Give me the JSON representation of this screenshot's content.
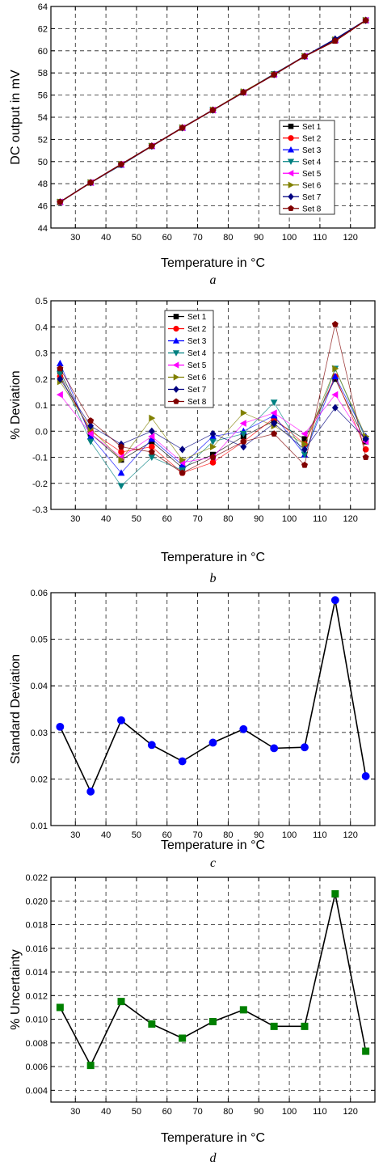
{
  "chart_data": [
    {
      "type": "line",
      "panel_label": "a",
      "xlabel": "Temperature in °C",
      "ylabel": "DC output in mV",
      "xlim": [
        22,
        128
      ],
      "ylim": [
        44,
        64
      ],
      "xticks": [
        30,
        40,
        50,
        60,
        70,
        80,
        90,
        100,
        110,
        120
      ],
      "yticks": [
        44,
        46,
        48,
        50,
        52,
        54,
        56,
        58,
        60,
        62,
        64
      ],
      "grid": true,
      "legend_position": "lower-right",
      "x": [
        25,
        35,
        45,
        55,
        65,
        75,
        85,
        95,
        105,
        115,
        125
      ],
      "series": [
        {
          "name": "Set 1",
          "color": "#000000",
          "marker": "square",
          "values": [
            46.35,
            48.1,
            49.75,
            51.4,
            53.05,
            54.65,
            56.25,
            57.85,
            59.5,
            60.9,
            62.75
          ]
        },
        {
          "name": "Set 2",
          "color": "#ff0000",
          "marker": "circle",
          "values": [
            46.35,
            48.1,
            49.75,
            51.4,
            53.05,
            54.65,
            56.25,
            57.85,
            59.5,
            60.9,
            62.75
          ]
        },
        {
          "name": "Set 3",
          "color": "#0000ff",
          "marker": "triangle-up",
          "values": [
            46.35,
            48.1,
            49.7,
            51.4,
            53.05,
            54.65,
            56.25,
            57.9,
            59.5,
            61.0,
            62.75
          ]
        },
        {
          "name": "Set 4",
          "color": "#008080",
          "marker": "triangle-down",
          "values": [
            46.35,
            48.1,
            49.7,
            51.4,
            53.05,
            54.65,
            56.25,
            57.9,
            59.5,
            60.95,
            62.75
          ]
        },
        {
          "name": "Set 5",
          "color": "#ff00ff",
          "marker": "triangle-left",
          "values": [
            46.35,
            48.1,
            49.75,
            51.4,
            53.05,
            54.65,
            56.25,
            57.85,
            59.5,
            60.95,
            62.75
          ]
        },
        {
          "name": "Set 6",
          "color": "#808000",
          "marker": "triangle-right",
          "values": [
            46.35,
            48.1,
            49.75,
            51.4,
            53.05,
            54.65,
            56.3,
            57.85,
            59.5,
            61.0,
            62.75
          ]
        },
        {
          "name": "Set 7",
          "color": "#000080",
          "marker": "diamond",
          "values": [
            46.35,
            48.1,
            49.75,
            51.4,
            53.05,
            54.65,
            56.25,
            57.85,
            59.5,
            61.05,
            62.75
          ]
        },
        {
          "name": "Set 8",
          "color": "#800000",
          "marker": "pentagon",
          "values": [
            46.35,
            48.1,
            49.75,
            51.4,
            53.05,
            54.65,
            56.25,
            57.85,
            59.5,
            60.9,
            62.75
          ]
        }
      ]
    },
    {
      "type": "line",
      "panel_label": "b",
      "xlabel": "Temperature in °C",
      "ylabel": "% Deviation",
      "xlim": [
        22,
        128
      ],
      "ylim": [
        -0.3,
        0.5
      ],
      "xticks": [
        30,
        40,
        50,
        60,
        70,
        80,
        90,
        100,
        110,
        120
      ],
      "yticks": [
        -0.3,
        -0.2,
        -0.1,
        0.0,
        0.1,
        0.2,
        0.3,
        0.4,
        0.5
      ],
      "ytick_labels": [
        "-0.3",
        "-0.2",
        "-0.1",
        "0.0",
        "0.1",
        "0.2",
        "0.3",
        "0.4",
        "0.5"
      ],
      "grid": true,
      "legend_position": "top-center",
      "x": [
        25,
        35,
        45,
        55,
        65,
        75,
        85,
        95,
        105,
        115,
        125
      ],
      "series": [
        {
          "name": "Set 1",
          "color": "#000000",
          "marker": "square",
          "values": [
            0.23,
            -0.01,
            -0.11,
            -0.04,
            -0.14,
            -0.09,
            -0.02,
            0.04,
            -0.03,
            0.2,
            -0.04
          ]
        },
        {
          "name": "Set 2",
          "color": "#ff0000",
          "marker": "circle",
          "values": [
            0.21,
            0.0,
            -0.08,
            -0.06,
            -0.16,
            -0.12,
            -0.04,
            0.05,
            -0.05,
            0.21,
            -0.07
          ]
        },
        {
          "name": "Set 3",
          "color": "#0000ff",
          "marker": "triangle-up",
          "values": [
            0.26,
            -0.02,
            -0.16,
            -0.03,
            -0.13,
            -0.02,
            0.0,
            0.06,
            -0.09,
            0.21,
            -0.02
          ]
        },
        {
          "name": "Set 4",
          "color": "#008080",
          "marker": "triangle-down",
          "values": [
            0.22,
            -0.04,
            -0.21,
            -0.1,
            -0.15,
            -0.04,
            -0.01,
            0.11,
            -0.09,
            0.24,
            -0.03
          ]
        },
        {
          "name": "Set 5",
          "color": "#ff00ff",
          "marker": "triangle-left",
          "values": [
            0.14,
            -0.01,
            -0.1,
            -0.02,
            -0.12,
            -0.1,
            0.03,
            0.07,
            -0.01,
            0.14,
            -0.04
          ]
        },
        {
          "name": "Set 6",
          "color": "#808000",
          "marker": "triangle-right",
          "values": [
            0.19,
            0.01,
            -0.11,
            0.05,
            -0.11,
            -0.06,
            0.07,
            0.02,
            -0.05,
            0.24,
            -0.02
          ]
        },
        {
          "name": "Set 7",
          "color": "#000080",
          "marker": "diamond",
          "values": [
            0.2,
            0.02,
            -0.05,
            0.0,
            -0.07,
            -0.01,
            -0.06,
            0.03,
            -0.07,
            0.09,
            -0.03
          ]
        },
        {
          "name": "Set 8",
          "color": "#800000",
          "marker": "pentagon",
          "values": [
            0.24,
            0.04,
            -0.06,
            -0.08,
            -0.16,
            -0.1,
            -0.04,
            -0.01,
            -0.13,
            0.41,
            -0.1
          ]
        }
      ]
    },
    {
      "type": "line",
      "panel_label": "c",
      "xlabel": "Temperature in °C",
      "ylabel": "Standard Deviation",
      "xlim": [
        22,
        128
      ],
      "ylim": [
        0.01,
        0.06
      ],
      "xticks": [
        30,
        40,
        50,
        60,
        70,
        80,
        90,
        100,
        110,
        120
      ],
      "yticks": [
        0.01,
        0.02,
        0.03,
        0.04,
        0.05,
        0.06
      ],
      "ytick_labels": [
        "0.01",
        "0.02",
        "0.03",
        "0.04",
        "0.05",
        "0.06"
      ],
      "grid": true,
      "x": [
        25,
        35,
        45,
        55,
        65,
        75,
        85,
        95,
        105,
        115,
        125
      ],
      "series": [
        {
          "color": "#0000ff",
          "line_color": "#000000",
          "marker": "circle",
          "values": [
            0.0312,
            0.0173,
            0.0326,
            0.0273,
            0.0238,
            0.0278,
            0.0307,
            0.0266,
            0.0268,
            0.0584,
            0.0206
          ]
        }
      ]
    },
    {
      "type": "line",
      "panel_label": "d",
      "xlabel": "Temperature in °C",
      "ylabel": "% Uncertainty",
      "xlim": [
        22,
        128
      ],
      "ylim": [
        0.003,
        0.022
      ],
      "xticks": [
        30,
        40,
        50,
        60,
        70,
        80,
        90,
        100,
        110,
        120
      ],
      "yticks": [
        0.004,
        0.006,
        0.008,
        0.01,
        0.012,
        0.014,
        0.016,
        0.018,
        0.02,
        0.022
      ],
      "ytick_labels": [
        "0.004",
        "0.006",
        "0.008",
        "0.010",
        "0.012",
        "0.014",
        "0.016",
        "0.018",
        "0.020",
        "0.022"
      ],
      "grid": true,
      "x": [
        25,
        35,
        45,
        55,
        65,
        75,
        85,
        95,
        105,
        115,
        125
      ],
      "series": [
        {
          "color": "#008000",
          "line_color": "#000000",
          "marker": "square",
          "values": [
            0.011,
            0.0061,
            0.0115,
            0.0096,
            0.0084,
            0.0098,
            0.0108,
            0.0094,
            0.0094,
            0.0206,
            0.0073
          ]
        }
      ]
    }
  ]
}
